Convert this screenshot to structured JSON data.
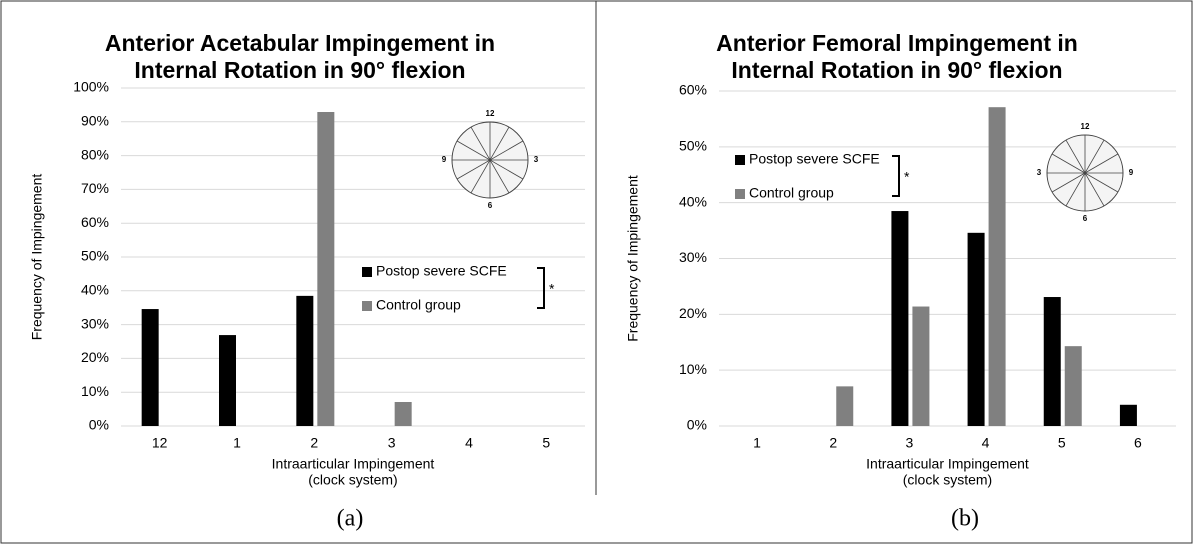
{
  "chart_data": [
    {
      "type": "bar",
      "title": [
        "Anterior Acetabular Impingement in",
        "Internal Rotation in 90° flexion"
      ],
      "x_label": [
        "Intraarticular Impingement",
        "(clock system)"
      ],
      "y_label": "Frequency of Impingement",
      "categories": [
        "12",
        "1",
        "2",
        "3",
        "4",
        "5"
      ],
      "series": [
        {
          "name": "Postop severe SCFE",
          "color": "#000000",
          "values": [
            34.6,
            26.9,
            38.5,
            0,
            0,
            0
          ]
        },
        {
          "name": "Control group",
          "color": "#808080",
          "values": [
            0,
            0,
            92.9,
            7.1,
            0,
            0
          ]
        }
      ],
      "ylim": [
        0,
        100
      ],
      "yticks": [
        {
          "value": 0,
          "label": "0%"
        },
        {
          "value": 10,
          "label": "10%"
        },
        {
          "value": 20,
          "label": "20%"
        },
        {
          "value": 30,
          "label": "30%"
        },
        {
          "value": 40,
          "label": "40%"
        },
        {
          "value": 50,
          "label": "50%"
        },
        {
          "value": 60,
          "label": "60%"
        },
        {
          "value": 70,
          "label": "70%"
        },
        {
          "value": 80,
          "label": "80%"
        },
        {
          "value": 90,
          "label": "90%"
        },
        {
          "value": 100,
          "label": "100%"
        }
      ],
      "grid": true,
      "legend": "right",
      "annotation": "*",
      "inset_labels": [
        "12",
        "3",
        "6",
        "9"
      ],
      "caption": "(a)"
    },
    {
      "type": "bar",
      "title": [
        "Anterior Femoral Impingement in",
        "Internal Rotation in 90° flexion"
      ],
      "x_label": [
        "Intraarticular Impingement",
        "(clock system)"
      ],
      "y_label": "Frequency of Impingement",
      "categories": [
        "1",
        "2",
        "3",
        "4",
        "5",
        "6"
      ],
      "series": [
        {
          "name": "Postop severe SCFE",
          "color": "#000000",
          "values": [
            0,
            0,
            38.5,
            34.6,
            23.1,
            3.8
          ]
        },
        {
          "name": "Control group",
          "color": "#808080",
          "values": [
            0,
            7.1,
            21.4,
            57.1,
            14.3,
            0
          ]
        }
      ],
      "ylim": [
        0,
        60
      ],
      "yticks": [
        {
          "value": 0,
          "label": "0%"
        },
        {
          "value": 10,
          "label": "10%"
        },
        {
          "value": 20,
          "label": "20%"
        },
        {
          "value": 30,
          "label": "30%"
        },
        {
          "value": 40,
          "label": "40%"
        },
        {
          "value": 50,
          "label": "50%"
        },
        {
          "value": 60,
          "label": "60%"
        }
      ],
      "grid": true,
      "legend": "left",
      "annotation": "*",
      "inset_labels": [
        "12",
        "3",
        "6",
        "9"
      ],
      "caption": "(b)"
    }
  ]
}
